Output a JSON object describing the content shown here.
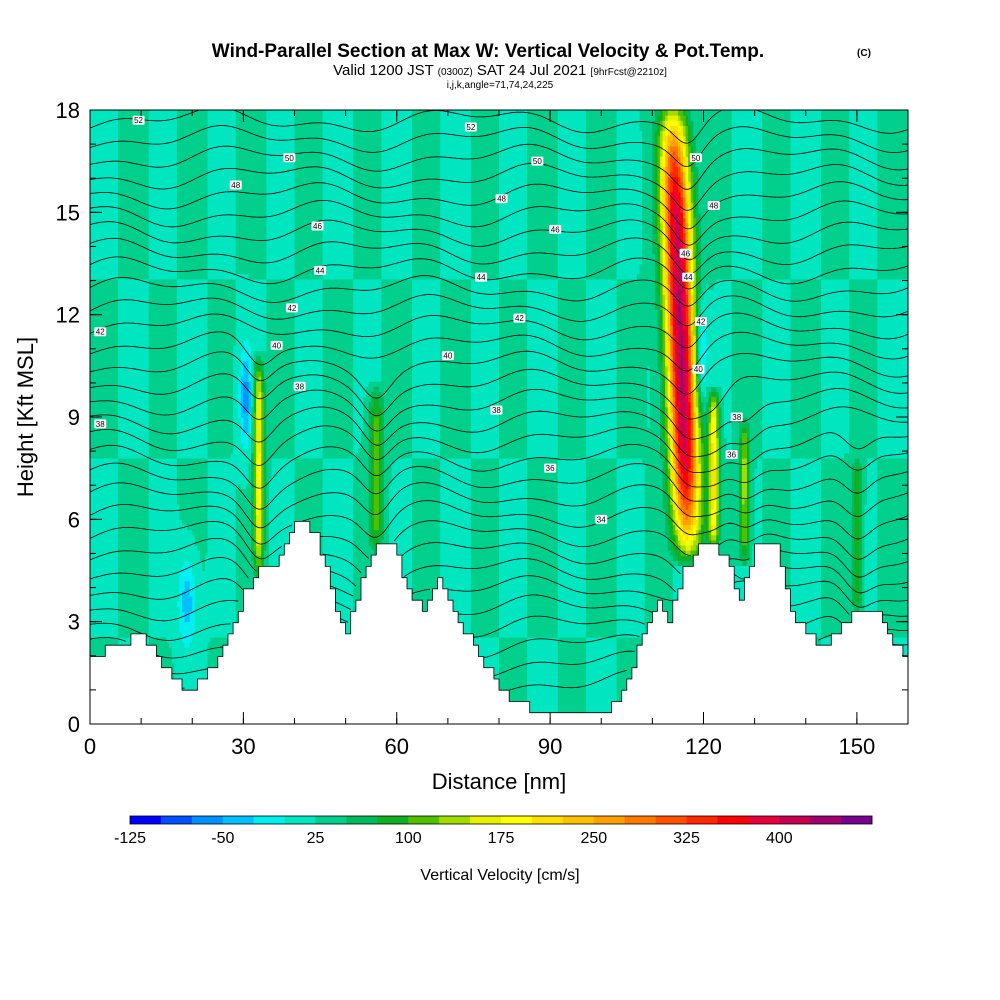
{
  "chart_data": {
    "type": "heatmap",
    "title": "Wind-Parallel Section at Max W: Vertical Velocity & Pot.Temp.",
    "copyright_mark": "(C)",
    "subtitle": {
      "valid_prefix": "Valid 1200 JST",
      "utc": "(0300Z)",
      "date": "SAT 24 Jul 2021",
      "forecast": "[9hrFcst@2210z]"
    },
    "section_params": "i,j,k,angle=71,74,24,225",
    "xlabel": "Distance [nm]",
    "ylabel": "Height [Kft MSL]",
    "xlim": [
      0,
      160
    ],
    "ylim": [
      0,
      18
    ],
    "x_ticks": [
      "0",
      "30",
      "60",
      "90",
      "120",
      "150"
    ],
    "y_ticks": [
      "0",
      "3",
      "6",
      "9",
      "12",
      "15",
      "18"
    ],
    "background_value": 25,
    "terrain": [
      [
        0,
        2.0
      ],
      [
        5,
        2.3
      ],
      [
        10,
        2.6
      ],
      [
        15,
        1.6
      ],
      [
        18,
        1.0
      ],
      [
        22,
        1.3
      ],
      [
        26,
        2.2
      ],
      [
        30,
        3.8
      ],
      [
        33,
        4.6
      ],
      [
        36,
        4.6
      ],
      [
        40,
        6.0
      ],
      [
        44,
        5.6
      ],
      [
        48,
        3.4
      ],
      [
        50,
        2.6
      ],
      [
        53,
        4.3
      ],
      [
        56,
        5.3
      ],
      [
        59,
        5.3
      ],
      [
        62,
        3.8
      ],
      [
        65,
        3.4
      ],
      [
        68,
        4.3
      ],
      [
        72,
        3.0
      ],
      [
        76,
        2.0
      ],
      [
        80,
        1.0
      ],
      [
        85,
        0.5
      ],
      [
        90,
        0.3
      ],
      [
        95,
        0.3
      ],
      [
        100,
        0.3
      ],
      [
        104,
        1.0
      ],
      [
        108,
        2.6
      ],
      [
        111,
        3.6
      ],
      [
        113,
        3.0
      ],
      [
        116,
        4.6
      ],
      [
        120,
        5.3
      ],
      [
        124,
        5.0
      ],
      [
        127,
        3.6
      ],
      [
        130,
        5.3
      ],
      [
        134,
        5.3
      ],
      [
        137,
        3.4
      ],
      [
        140,
        2.6
      ],
      [
        144,
        2.3
      ],
      [
        146,
        2.8
      ],
      [
        150,
        3.4
      ],
      [
        154,
        3.4
      ],
      [
        157,
        2.3
      ],
      [
        160,
        2.0
      ]
    ],
    "updrafts": [
      {
        "label": "main updraft core",
        "x_top": 114,
        "x_bottom": 117,
        "y_top": 18,
        "y_bottom": 5.0,
        "peak": 400,
        "halfwidth": 2.8
      },
      {
        "label": "updraft near 33 nm",
        "x_top": 33,
        "x_bottom": 33,
        "y_top": 10.5,
        "y_bottom": 4.6,
        "peak": 160,
        "halfwidth": 1.0
      },
      {
        "label": "updraft near 56 nm",
        "x_top": 56,
        "x_bottom": 56,
        "y_top": 9.6,
        "y_bottom": 5.3,
        "peak": 90,
        "halfwidth": 1.4
      },
      {
        "label": "updraft near 122 nm",
        "x_top": 122,
        "x_bottom": 122,
        "y_top": 9.5,
        "y_bottom": 5.5,
        "peak": 180,
        "halfwidth": 1.0
      },
      {
        "label": "updraft near 128 nm",
        "x_top": 128,
        "x_bottom": 128,
        "y_top": 8.6,
        "y_bottom": 5.0,
        "peak": 110,
        "halfwidth": 1.0
      },
      {
        "label": "updraft near 150 nm",
        "x_top": 150,
        "x_bottom": 150,
        "y_top": 7.6,
        "y_bottom": 3.4,
        "peak": 80,
        "halfwidth": 1.0
      }
    ],
    "downdrafts": [
      {
        "label": "downdraft near 19 nm",
        "x": 19,
        "y": 3.6,
        "rx": 1.8,
        "ry": 1.3,
        "peak": -40
      },
      {
        "label": "downdraft near 30 nm",
        "x": 30.5,
        "y": 9.6,
        "rx": 1.2,
        "ry": 1.4,
        "peak": -60
      },
      {
        "label": "downdraft near 119 nm",
        "x": 119.5,
        "y": 10.8,
        "rx": 1.3,
        "ry": 1.6,
        "peak": -70
      }
    ],
    "theta_contour_interval": 1,
    "theta_labels": [
      {
        "value": "52",
        "x": 9.5,
        "y": 17.7
      },
      {
        "value": "52",
        "x": 74.5,
        "y": 17.5
      },
      {
        "value": "50",
        "x": 39,
        "y": 16.6
      },
      {
        "value": "50",
        "x": 87.5,
        "y": 16.5
      },
      {
        "value": "50",
        "x": 118.5,
        "y": 16.6
      },
      {
        "value": "48",
        "x": 28.5,
        "y": 15.8
      },
      {
        "value": "48",
        "x": 80.5,
        "y": 15.4
      },
      {
        "value": "48",
        "x": 122,
        "y": 15.2
      },
      {
        "value": "46",
        "x": 44.5,
        "y": 14.6
      },
      {
        "value": "46",
        "x": 91,
        "y": 14.5
      },
      {
        "value": "46",
        "x": 116.5,
        "y": 13.8
      },
      {
        "value": "44",
        "x": 45,
        "y": 13.3
      },
      {
        "value": "44",
        "x": 76.5,
        "y": 13.1
      },
      {
        "value": "44",
        "x": 117,
        "y": 13.1
      },
      {
        "value": "42",
        "x": 2,
        "y": 11.5
      },
      {
        "value": "42",
        "x": 39.5,
        "y": 12.2
      },
      {
        "value": "42",
        "x": 84,
        "y": 11.9
      },
      {
        "value": "42",
        "x": 119.5,
        "y": 11.8
      },
      {
        "value": "40",
        "x": 36.5,
        "y": 11.1
      },
      {
        "value": "40",
        "x": 70,
        "y": 10.8
      },
      {
        "value": "40",
        "x": 119,
        "y": 10.4
      },
      {
        "value": "38",
        "x": 41,
        "y": 9.9
      },
      {
        "value": "38",
        "x": 2,
        "y": 8.8
      },
      {
        "value": "38",
        "x": 79.5,
        "y": 9.2
      },
      {
        "value": "38",
        "x": 126.5,
        "y": 9.0
      },
      {
        "value": "36",
        "x": 90,
        "y": 7.5
      },
      {
        "value": "36",
        "x": 125.5,
        "y": 7.9
      },
      {
        "value": "34",
        "x": 100,
        "y": 6.0
      }
    ],
    "colorbar": {
      "title": "Vertical Velocity [cm/s]",
      "tick_labels": [
        "-125",
        "-50",
        "25",
        "100",
        "175",
        "250",
        "325",
        "400"
      ],
      "range": [
        -125,
        450
      ],
      "step": 25,
      "colors": [
        "#0000ff",
        "#0050ff",
        "#0090ff",
        "#00c0ff",
        "#00f0f0",
        "#00e6c0",
        "#00d08c",
        "#00ba5a",
        "#10b020",
        "#50c000",
        "#a0dc00",
        "#e8f000",
        "#ffff00",
        "#ffe000",
        "#ffc000",
        "#ffa000",
        "#ff7800",
        "#ff5000",
        "#ff2800",
        "#ff0000",
        "#e8003c",
        "#c80050",
        "#a00070",
        "#780090"
      ]
    }
  }
}
